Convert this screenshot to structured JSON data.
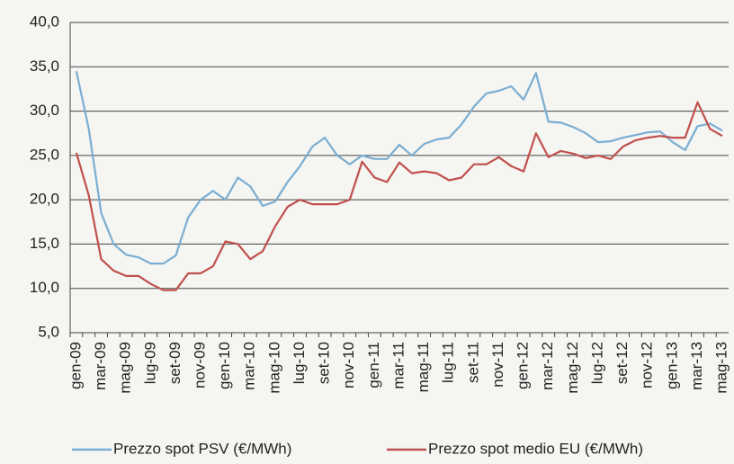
{
  "chart_data": {
    "type": "line",
    "categories": [
      "gen-09",
      null,
      "mar-09",
      null,
      "mag-09",
      null,
      "lug-09",
      null,
      "set-09",
      null,
      "nov-09",
      null,
      "gen-10",
      null,
      "mar-10",
      null,
      "mag-10",
      null,
      "lug-10",
      null,
      "set-10",
      null,
      "nov-10",
      null,
      "gen-11",
      null,
      "mar-11",
      null,
      "mag-11",
      null,
      "lug-11",
      null,
      "set-11",
      null,
      "nov-11",
      null,
      "gen-12",
      null,
      "mar-12",
      null,
      "mag-12",
      null,
      "lug-12",
      null,
      "set-12",
      null,
      "nov-12",
      null,
      "gen-13",
      null,
      "mar-13",
      null,
      "mag-13"
    ],
    "series": [
      {
        "name": "Prezzo spot PSV (€/MWh)",
        "color": "#7aaed2",
        "values": [
          34.5,
          28,
          18.5,
          15,
          13.8,
          13.5,
          12.8,
          12.8,
          13.7,
          18,
          20,
          21,
          20,
          22.5,
          21.5,
          19.3,
          19.8,
          22,
          23.8,
          26,
          27,
          25,
          24,
          25,
          24.6,
          24.6,
          26.2,
          25,
          26.3,
          26.8,
          27,
          28.5,
          30.5,
          32,
          32.3,
          32.8,
          31.3,
          34.3,
          28.8,
          28.7,
          28.2,
          27.5,
          26.5,
          26.6,
          27,
          27.3,
          27.6,
          27.7,
          26.5,
          25.6,
          28.3,
          28.6,
          27.8
        ]
      },
      {
        "name": "Prezzo spot medio EU (€/MWh)",
        "color": "#c0504d",
        "values": [
          25.3,
          20.5,
          13.3,
          12,
          11.4,
          11.4,
          10.5,
          9.8,
          9.8,
          11.7,
          11.7,
          12.5,
          15.3,
          15,
          13.3,
          14.2,
          17,
          19.2,
          20,
          19.5,
          19.5,
          19.5,
          20,
          24.3,
          22.5,
          22,
          24.2,
          23,
          23.2,
          23,
          22.2,
          22.5,
          24,
          24,
          24.8,
          23.8,
          23.2,
          27.5,
          24.8,
          25.5,
          25.2,
          24.7,
          25,
          24.6,
          26,
          26.7,
          27,
          27.2,
          27,
          27,
          31,
          28,
          27.2
        ]
      }
    ],
    "ylim": [
      5,
      40
    ],
    "yticks": [
      {
        "value": 5,
        "label": "5,0"
      },
      {
        "value": 10,
        "label": "10,0"
      },
      {
        "value": 15,
        "label": "15,0"
      },
      {
        "value": 20,
        "label": "20,0"
      },
      {
        "value": 25,
        "label": "25,0"
      },
      {
        "value": 30,
        "label": "30,0"
      },
      {
        "value": 35,
        "label": "35,0"
      },
      {
        "value": 40,
        "label": "40,0"
      }
    ],
    "grid": true
  }
}
